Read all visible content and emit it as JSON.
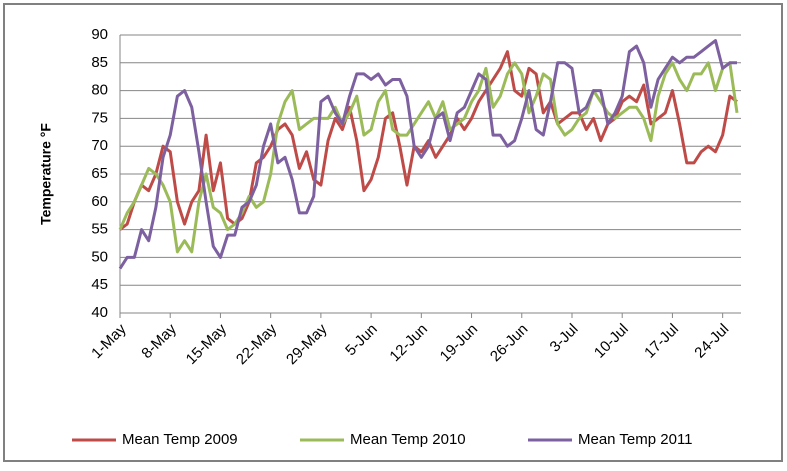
{
  "chart_data": {
    "type": "line",
    "y_label": "Temperature °F",
    "categories": [
      "1-May",
      null,
      null,
      null,
      null,
      null,
      null,
      "8-May",
      null,
      null,
      null,
      null,
      null,
      null,
      "15-May",
      null,
      null,
      null,
      null,
      null,
      null,
      "22-May",
      null,
      null,
      null,
      null,
      null,
      null,
      "29-May",
      null,
      null,
      null,
      null,
      null,
      null,
      "5-Jun",
      null,
      null,
      null,
      null,
      null,
      null,
      "12-Jun",
      null,
      null,
      null,
      null,
      null,
      null,
      "19-Jun",
      null,
      null,
      null,
      null,
      null,
      null,
      "26-Jun",
      null,
      null,
      null,
      null,
      null,
      null,
      "3-Jul",
      null,
      null,
      null,
      null,
      null,
      null,
      "10-Jul",
      null,
      null,
      null,
      null,
      null,
      null,
      "17-Jul",
      null,
      null,
      null,
      null,
      null,
      null,
      "24-Jul",
      null,
      null
    ],
    "series": [
      {
        "name": "Mean Temp 2009",
        "color": "#be4b48",
        "values": [
          55,
          56,
          60,
          63,
          62,
          65,
          70,
          69,
          60,
          56,
          60,
          62,
          72,
          62,
          67,
          57,
          56,
          57,
          60,
          67,
          68,
          70,
          73,
          74,
          72,
          66,
          69,
          64,
          63,
          71,
          75,
          73,
          77,
          71,
          62,
          64,
          68,
          75,
          76,
          70,
          63,
          70,
          69,
          71,
          68,
          70,
          72,
          75,
          73,
          75,
          78,
          80,
          82,
          84,
          87,
          80,
          79,
          84,
          83,
          76,
          78,
          74,
          75,
          76,
          76,
          73,
          75,
          71,
          74,
          75,
          78,
          79,
          78,
          81,
          74,
          75,
          76,
          80,
          74,
          67,
          67,
          69,
          70,
          69,
          72,
          79,
          78
        ]
      },
      {
        "name": "Mean Temp 2010",
        "color": "#9bbb59",
        "values": [
          55,
          58,
          60,
          63,
          66,
          65,
          63,
          60,
          51,
          53,
          51,
          60,
          65,
          59,
          58,
          55,
          56,
          58,
          61,
          59,
          60,
          65,
          74,
          78,
          80,
          73,
          74,
          75,
          75,
          75,
          77,
          74,
          76,
          79,
          72,
          73,
          78,
          80,
          73,
          72,
          72,
          74,
          76,
          78,
          75,
          78,
          73,
          74,
          75,
          78,
          80,
          84,
          77,
          79,
          83,
          85,
          83,
          76,
          79,
          83,
          82,
          74,
          72,
          73,
          75,
          76,
          80,
          78,
          76,
          75,
          76,
          77,
          77,
          75,
          71,
          79,
          83,
          85,
          82,
          80,
          83,
          83,
          85,
          80,
          84,
          85,
          76
        ]
      },
      {
        "name": "Mean Temp 2011",
        "color": "#7d60a0",
        "values": [
          48,
          50,
          50,
          55,
          53,
          59,
          68,
          72,
          79,
          80,
          77,
          69,
          60,
          52,
          50,
          54,
          54,
          59,
          60,
          63,
          70,
          74,
          67,
          68,
          64,
          58,
          58,
          61,
          78,
          79,
          76,
          74,
          79,
          83,
          83,
          82,
          83,
          81,
          82,
          82,
          79,
          70,
          68,
          70,
          75,
          76,
          71,
          76,
          77,
          80,
          83,
          82,
          72,
          72,
          70,
          71,
          75,
          80,
          73,
          72,
          78,
          85,
          85,
          84,
          76,
          77,
          80,
          80,
          74,
          76,
          79,
          87,
          88,
          85,
          77,
          82,
          84,
          86,
          85,
          86,
          86,
          87,
          88,
          89,
          84,
          85,
          85
        ]
      }
    ],
    "ylim": [
      40,
      90
    ],
    "yticks": [
      40,
      45,
      50,
      55,
      60,
      65,
      70,
      75,
      80,
      85,
      90
    ],
    "grid": true,
    "legend": "bottom"
  }
}
